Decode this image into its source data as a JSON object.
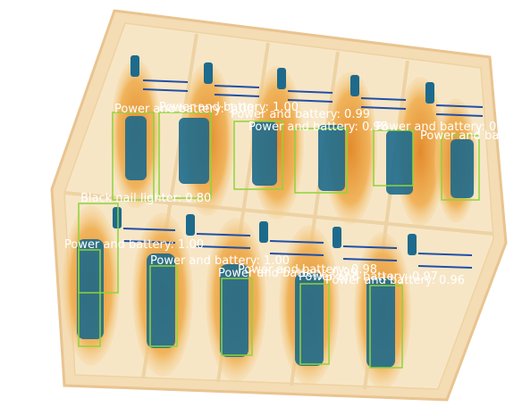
{
  "image": {
    "colors": {
      "background": "#ffffff",
      "tray": "#f4dcb4",
      "tray_edge": "#e9c490",
      "item_orange": "#e69a3c",
      "item_core": "#1d6a8c",
      "wire_blue": "#1f4fa8",
      "box_green": "#8ed43a",
      "label_text": "#ffffff"
    }
  },
  "detections": [
    {
      "label": "Power and battery: 1.00"
    },
    {
      "label": "Power and battery: 1.00"
    },
    {
      "label": "Power and battery: 0.99"
    },
    {
      "label": "Power and battery: 0.98"
    },
    {
      "label": "Power and battery: 0.97"
    },
    {
      "label": "Power and battery: 0.96"
    },
    {
      "label": "Black nail lighter: 0.80"
    },
    {
      "label": "Power and battery: 1.00"
    },
    {
      "label": "Power and battery: 1.00"
    },
    {
      "label": "Power and battery: 0.99"
    },
    {
      "label": "Power and battery: 0.98"
    },
    {
      "label": "Power and battery: 0.97"
    },
    {
      "label": "Power and battery: 0.96"
    }
  ]
}
